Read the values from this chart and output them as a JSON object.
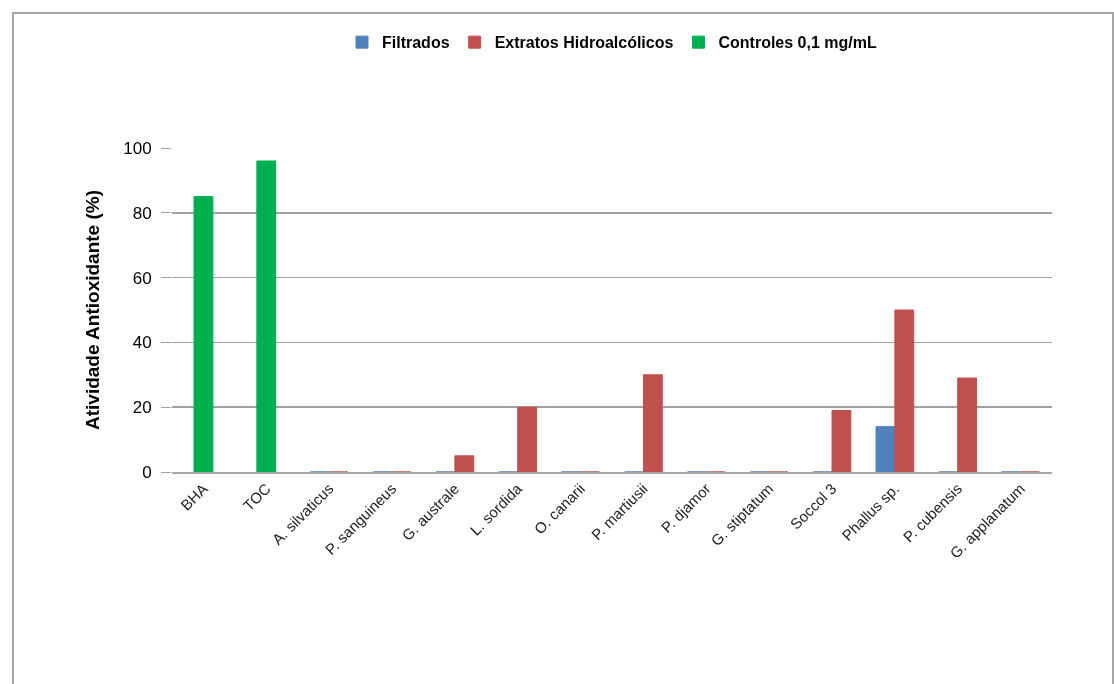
{
  "chart_data": {
    "type": "bar",
    "categories": [
      "BHA",
      "TOC",
      "A. silvaticus",
      "P. sanguineus",
      "G. australe",
      "L. sordida",
      "O. canarii",
      "P. martiusii",
      "P. djamor",
      "G. stiptatum",
      "Soccol 3",
      "Phallus sp.",
      "P. cubensis",
      "G. applanatum"
    ],
    "series": [
      {
        "name": "Filtrados",
        "color": "#4f81bd",
        "values": [
          null,
          null,
          0,
          0,
          0,
          0,
          0,
          0,
          0,
          0,
          0,
          14,
          0,
          0
        ]
      },
      {
        "name": "Extratos Hidroalcólicos",
        "color": "#c0504d",
        "values": [
          null,
          null,
          0,
          0,
          5,
          20,
          0,
          30,
          0,
          0,
          19,
          50,
          29,
          0
        ]
      },
      {
        "name": "Controles 0,1 mg/mL",
        "color": "#00b050",
        "values": [
          85,
          96,
          null,
          null,
          null,
          null,
          null,
          null,
          null,
          null,
          null,
          null,
          null,
          null
        ]
      }
    ],
    "ylabel": "Atividade Antioxidante (%)",
    "ylim": [
      0,
      100
    ],
    "yticks": [
      0,
      20,
      40,
      60,
      80,
      100
    ],
    "grid": "y",
    "legend": "top"
  }
}
